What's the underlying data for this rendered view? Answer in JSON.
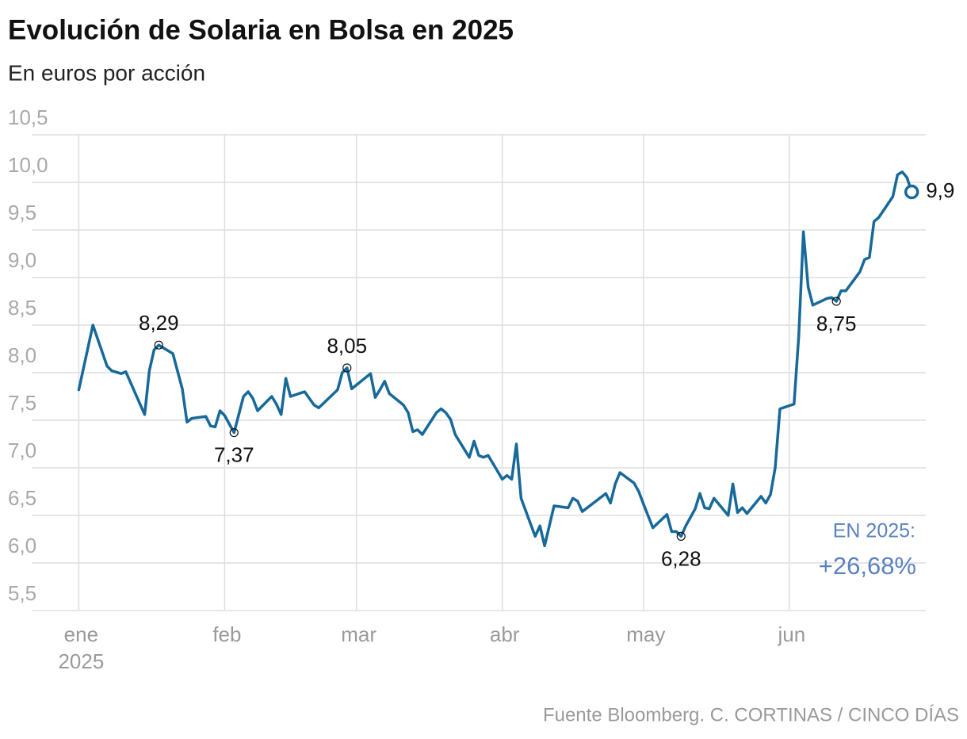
{
  "chart_data": {
    "type": "line",
    "title": "Evolución de Solaria en Bolsa en 2025",
    "subtitle": "En euros por acción",
    "source": "Fuente Bloomberg. C. CORTINAS / CINCO DÍAS",
    "summary": {
      "label": "EN 2025:",
      "value": "+26,68%"
    },
    "color": "#17699a",
    "grid": true,
    "x": [
      0,
      3,
      6,
      7,
      9,
      10,
      14,
      15,
      16,
      17,
      20,
      22,
      23,
      24,
      27,
      28,
      29,
      30,
      31,
      33,
      35,
      36,
      37,
      38,
      41,
      42,
      43,
      44,
      45,
      48,
      50,
      51,
      55,
      56,
      57,
      58,
      62,
      63,
      64,
      65,
      66,
      69,
      70,
      71,
      72,
      73,
      76,
      77,
      78,
      79,
      80,
      83,
      84,
      85,
      86,
      87,
      90,
      91,
      92,
      93,
      94,
      97,
      98,
      99,
      101,
      104,
      105,
      106,
      107,
      112,
      113,
      114,
      115,
      118,
      119,
      120,
      122,
      125,
      126,
      127,
      128,
      129,
      131,
      132,
      133,
      134,
      135,
      138,
      139,
      140,
      141,
      142,
      145,
      146,
      147,
      148,
      149,
      152,
      153,
      154,
      155,
      156,
      159,
      160,
      161,
      162,
      163,
      166,
      167,
      168,
      169,
      170,
      173,
      174,
      175,
      176,
      177
    ],
    "values": [
      7.82,
      8.5,
      8.07,
      8.02,
      7.99,
      8.01,
      7.56,
      8.02,
      8.24,
      8.29,
      8.2,
      7.83,
      7.48,
      7.52,
      7.54,
      7.44,
      7.43,
      7.6,
      7.55,
      7.37,
      7.75,
      7.8,
      7.73,
      7.6,
      7.75,
      7.67,
      7.56,
      7.94,
      7.75,
      7.8,
      7.66,
      7.63,
      7.82,
      8.0,
      8.05,
      7.83,
      7.99,
      7.74,
      7.82,
      7.91,
      7.78,
      7.66,
      7.58,
      7.38,
      7.4,
      7.35,
      7.58,
      7.62,
      7.58,
      7.51,
      7.35,
      7.11,
      7.28,
      7.13,
      7.11,
      7.13,
      6.88,
      6.92,
      6.88,
      7.25,
      6.68,
      6.28,
      6.39,
      6.18,
      6.6,
      6.58,
      6.68,
      6.65,
      6.54,
      6.73,
      6.63,
      6.83,
      6.95,
      6.84,
      6.75,
      6.62,
      6.37,
      6.51,
      6.33,
      6.33,
      6.28,
      6.39,
      6.57,
      6.73,
      6.58,
      6.57,
      6.68,
      6.5,
      6.83,
      6.53,
      6.58,
      6.52,
      6.7,
      6.63,
      6.72,
      7.0,
      7.62,
      7.67,
      8.38,
      9.48,
      8.9,
      8.71,
      8.78,
      8.79,
      8.75,
      8.86,
      8.86,
      9.06,
      9.19,
      9.21,
      9.59,
      9.63,
      9.85,
      10.08,
      10.11,
      10.05,
      9.9
    ],
    "xlim": [
      -10,
      180
    ],
    "xticks": [
      {
        "value": 0,
        "label": "ene"
      },
      {
        "value": 31,
        "label": "feb"
      },
      {
        "value": 59,
        "label": "mar"
      },
      {
        "value": 90,
        "label": "abr"
      },
      {
        "value": 120,
        "label": "may"
      },
      {
        "value": 151,
        "label": "jun"
      }
    ],
    "year_label": "2025",
    "ylim": [
      5.5,
      10.5
    ],
    "yticks": [
      {
        "value": 5.5,
        "label": "5,5"
      },
      {
        "value": 6,
        "label": "6,0"
      },
      {
        "value": 6.5,
        "label": "6,5"
      },
      {
        "value": 7,
        "label": "7,0"
      },
      {
        "value": 7.5,
        "label": "7,5"
      },
      {
        "value": 8,
        "label": "8,0"
      },
      {
        "value": 8.5,
        "label": "8,5"
      },
      {
        "value": 9,
        "label": "9,0"
      },
      {
        "value": 9.5,
        "label": "9,5"
      },
      {
        "value": 10,
        "label": "10,0"
      },
      {
        "value": 10.5,
        "label": "10,5"
      }
    ],
    "annotations": [
      {
        "x": 17,
        "value": 8.29,
        "label": "8,29",
        "position": "above"
      },
      {
        "x": 33,
        "value": 7.37,
        "label": "7,37",
        "position": "below"
      },
      {
        "x": 57,
        "value": 8.05,
        "label": "8,05",
        "position": "above"
      },
      {
        "x": 128,
        "value": 6.28,
        "label": "6,28",
        "position": "below"
      },
      {
        "x": 161,
        "value": 8.75,
        "label": "8,75",
        "position": "below"
      },
      {
        "x": 177,
        "value": 9.9,
        "label": "9,9",
        "position": "end"
      }
    ]
  }
}
